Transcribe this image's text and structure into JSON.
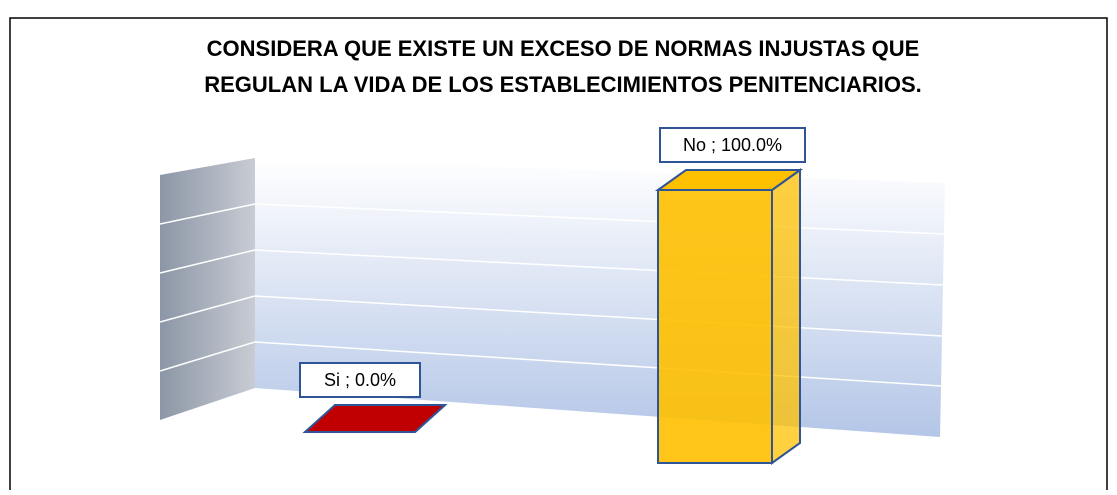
{
  "chart_data": {
    "type": "bar3d",
    "title": "CONSIDERA QUE EXISTE UN EXCESO DE NORMAS INJUSTAS QUE REGULAN LA VIDA DE LOS ESTABLECIMIENTOS PENITENCIARIOS.",
    "categories": [
      "Si",
      "No"
    ],
    "values": [
      0,
      100
    ],
    "value_labels": [
      "Si ; 0.0%",
      "No ; 100.0%"
    ],
    "colors": [
      "#c00000",
      "#ffc000"
    ],
    "ylim": [
      0,
      100
    ]
  }
}
